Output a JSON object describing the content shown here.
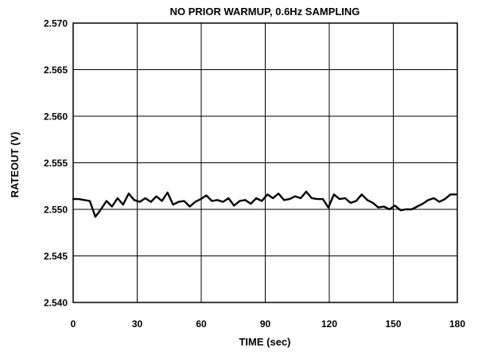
{
  "chart_data": {
    "type": "line",
    "title": "NO PRIOR WARMUP, 0.6Hz SAMPLING",
    "xlabel": "TIME (sec)",
    "ylabel": "RATEOUT (V)",
    "xlim": [
      0,
      180
    ],
    "ylim": [
      2.54,
      2.57
    ],
    "xticks": [
      0,
      30,
      60,
      90,
      120,
      150,
      180
    ],
    "yticks": [
      2.54,
      2.545,
      2.55,
      2.555,
      2.56,
      2.565,
      2.57
    ],
    "xtick_labels": [
      "0",
      "30",
      "60",
      "90",
      "120",
      "150",
      "180"
    ],
    "ytick_labels": [
      "2.540",
      "2.545",
      "2.550",
      "2.555",
      "2.560",
      "2.565",
      "2.570"
    ],
    "grid": true,
    "legend": "none",
    "line_color": "#000000",
    "series": [
      {
        "x": [
          0,
          2.6,
          5.2,
          7.8,
          10.4,
          13.0,
          15.6,
          18.2,
          20.8,
          23.4,
          26.0,
          28.6,
          31.2,
          33.8,
          36.4,
          39.0,
          41.6,
          44.2,
          46.8,
          49.4,
          52.0,
          54.6,
          57.2,
          59.8,
          62.4,
          65.0,
          67.6,
          70.2,
          72.8,
          75.4,
          78.0,
          80.6,
          83.2,
          85.8,
          88.4,
          91.0,
          93.6,
          96.2,
          98.8,
          101.4,
          104.0,
          106.6,
          109.2,
          111.8,
          114.4,
          117.0,
          119.6,
          122.2,
          124.8,
          127.4,
          130.0,
          132.6,
          135.2,
          137.8,
          140.4,
          143.0,
          145.6,
          148.2,
          150.8,
          153.4,
          156.0,
          158.6,
          161.2,
          163.8,
          166.4,
          169.0,
          171.6,
          174.2,
          176.8,
          179.4
        ],
        "values": [
          2.5511,
          2.5511,
          2.551,
          2.5509,
          2.5492,
          2.55,
          2.5509,
          2.5503,
          2.5512,
          2.5505,
          2.5517,
          2.551,
          2.5508,
          2.5512,
          2.5508,
          2.5514,
          2.5509,
          2.5518,
          2.5505,
          2.5508,
          2.5509,
          2.5503,
          2.5508,
          2.5511,
          2.5515,
          2.5509,
          2.551,
          2.5508,
          2.5512,
          2.5504,
          2.5509,
          2.551,
          2.5506,
          2.5512,
          2.5509,
          2.5516,
          2.5512,
          2.5517,
          2.551,
          2.5511,
          2.5514,
          2.5512,
          2.5519,
          2.5512,
          2.5511,
          2.5511,
          2.5502,
          2.5516,
          2.5511,
          2.5512,
          2.5507,
          2.5509,
          2.5516,
          2.551,
          2.5507,
          2.5502,
          2.5503,
          2.55,
          2.5504,
          2.5499,
          2.55,
          2.55,
          2.5503,
          2.5506,
          2.551,
          2.5512,
          2.5508,
          2.5511,
          2.5516,
          2.5516
        ]
      }
    ]
  }
}
